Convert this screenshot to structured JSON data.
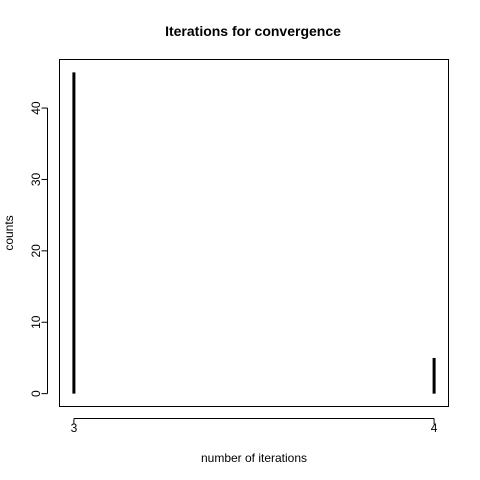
{
  "chart_data": {
    "type": "bar",
    "title": "Iterations for convergence",
    "xlabel": "number of iterations",
    "ylabel": "counts",
    "categories": [
      "3",
      "4"
    ],
    "values": [
      45,
      5
    ],
    "x": [
      3,
      4
    ],
    "xlim": [
      2.96,
      4.04
    ],
    "ylim": [
      -1.8,
      46.8
    ],
    "xticks": [
      3,
      4
    ],
    "yticks": [
      0,
      10,
      20,
      30,
      40
    ],
    "grid": false,
    "legend": "none",
    "bar_color": "#000000",
    "style": "histogram spikes"
  }
}
